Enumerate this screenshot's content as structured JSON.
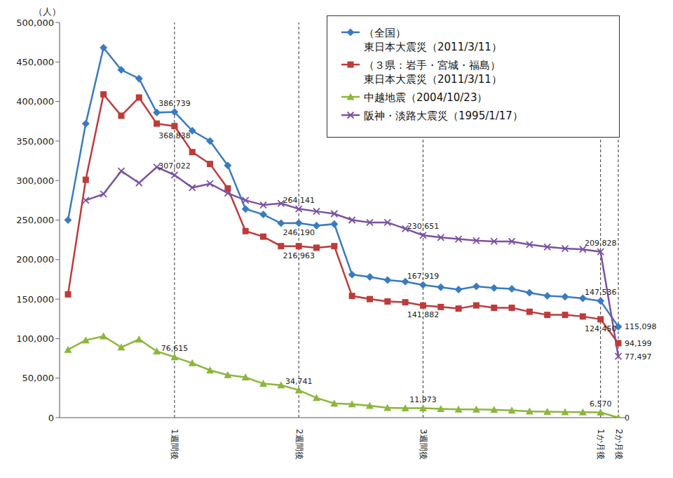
{
  "chart_data": {
    "type": "line",
    "y_label": "（人）",
    "categories": [
      null,
      null,
      null,
      null,
      null,
      null,
      "1週間後",
      null,
      null,
      null,
      null,
      null,
      null,
      "2週間後",
      null,
      null,
      null,
      null,
      null,
      null,
      "3週間後",
      null,
      null,
      null,
      null,
      null,
      null,
      null,
      null,
      null,
      "1か月後",
      "2か月後"
    ],
    "ylim": [
      0,
      500000
    ],
    "yticks": [
      0,
      {
        "value": 50000,
        "label": "50,000"
      },
      {
        "value": 100000,
        "label": "100,000"
      },
      {
        "value": 150000,
        "label": "150,000"
      },
      {
        "value": 200000,
        "label": "200,000"
      },
      {
        "value": 250000,
        "label": "250,000"
      },
      {
        "value": 300000,
        "label": "300,000"
      },
      {
        "value": 350000,
        "label": "350,000"
      },
      {
        "value": 400000,
        "label": "400,000"
      },
      {
        "value": 450000,
        "label": "450,000"
      },
      {
        "value": 500000,
        "label": "500,000"
      }
    ],
    "grid": false,
    "legend": "upper right",
    "data_labels": true,
    "series": [
      {
        "name": "（全国）\n東日本大震災（2011/3/11）",
        "color": "#3a7bbf",
        "marker": "diamond",
        "values": [
          250000,
          372000,
          468000,
          440000,
          429000,
          386000,
          386739,
          363000,
          350000,
          319000,
          264000,
          257000,
          246000,
          246190,
          243000,
          245000,
          181000,
          178000,
          174000,
          172000,
          167919,
          165000,
          162000,
          166000,
          164000,
          163000,
          158000,
          154000,
          153000,
          151000,
          147536,
          115098
        ],
        "value_labels": [
          null,
          null,
          null,
          null,
          null,
          null,
          "386,739",
          null,
          null,
          null,
          null,
          null,
          null,
          "246,190",
          null,
          null,
          null,
          null,
          null,
          null,
          "167,919",
          null,
          null,
          null,
          null,
          null,
          null,
          null,
          null,
          null,
          "147,536",
          "115,098"
        ]
      },
      {
        "name": "（３県：岩手・宮城・福島）\n東日本大震災（2011/3/11）",
        "color": "#be3b3b",
        "marker": "square",
        "values": [
          156000,
          301000,
          409000,
          382000,
          405000,
          372000,
          368838,
          336000,
          321000,
          290000,
          236000,
          229000,
          217000,
          216963,
          215000,
          217000,
          154000,
          150000,
          147000,
          146000,
          141882,
          140000,
          138000,
          142000,
          139000,
          139000,
          134000,
          130000,
          130000,
          128000,
          124450,
          94199
        ],
        "value_labels": [
          null,
          null,
          null,
          null,
          null,
          null,
          "368,838",
          null,
          null,
          null,
          null,
          null,
          null,
          "216,963",
          null,
          null,
          null,
          null,
          null,
          null,
          "141,882",
          null,
          null,
          null,
          null,
          null,
          null,
          null,
          null,
          null,
          "124,450",
          "94,199"
        ]
      },
      {
        "name": "中越地震（2004/10/23）",
        "color": "#8db63c",
        "marker": "triangle",
        "values": [
          86000,
          98000,
          103000,
          89000,
          99000,
          84000,
          76615,
          69000,
          60000,
          54000,
          51000,
          43000,
          41000,
          34741,
          25000,
          18000,
          17000,
          15000,
          12500,
          12000,
          11973,
          11000,
          10500,
          10500,
          10000,
          9000,
          8000,
          7500,
          7000,
          6800,
          6570,
          0
        ],
        "value_labels": [
          null,
          null,
          null,
          null,
          null,
          null,
          "76,615",
          null,
          null,
          null,
          null,
          null,
          null,
          "34,741",
          null,
          null,
          null,
          null,
          null,
          null,
          "11,973",
          null,
          null,
          null,
          null,
          null,
          null,
          null,
          null,
          null,
          "6,570",
          "0"
        ]
      },
      {
        "name": "阪神・淡路大震災（1995/1/17）",
        "color": "#7b52a0",
        "marker": "x",
        "values": [
          null,
          275000,
          283000,
          312000,
          297000,
          317000,
          307022,
          291000,
          296000,
          284000,
          275000,
          269000,
          271000,
          264141,
          261000,
          258000,
          250000,
          247000,
          247000,
          239000,
          230651,
          228000,
          226000,
          224000,
          223000,
          223000,
          219000,
          216000,
          214000,
          213000,
          209828,
          77497
        ],
        "value_labels": [
          null,
          null,
          null,
          null,
          null,
          null,
          "307,022",
          null,
          null,
          null,
          null,
          null,
          null,
          "264,141",
          null,
          null,
          null,
          null,
          null,
          null,
          "230,651",
          null,
          null,
          null,
          null,
          null,
          null,
          null,
          null,
          null,
          "209,828",
          "77,497"
        ]
      }
    ]
  }
}
